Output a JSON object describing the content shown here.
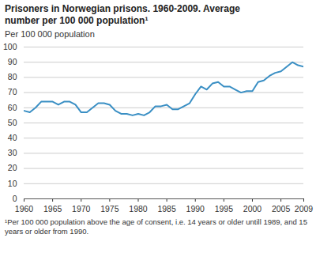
{
  "chart_data": {
    "type": "line",
    "title": "Prisoners in Norwegian prisons. 1960-2009. Average number per 100 000 population¹",
    "y_label": "Per 100 000 population",
    "note": "¹Per 100 000 population above the age of consent, i.e. 14 years or older untill 1989, and 15 years or older from 1990.",
    "x": [
      1960,
      1961,
      1962,
      1963,
      1964,
      1965,
      1966,
      1967,
      1968,
      1969,
      1970,
      1971,
      1972,
      1973,
      1974,
      1975,
      1976,
      1977,
      1978,
      1979,
      1980,
      1981,
      1982,
      1983,
      1984,
      1985,
      1986,
      1987,
      1988,
      1989,
      1990,
      1991,
      1992,
      1993,
      1994,
      1995,
      1996,
      1997,
      1998,
      1999,
      2000,
      2001,
      2002,
      2003,
      2004,
      2005,
      2006,
      2007,
      2008,
      2009
    ],
    "values": [
      58,
      57,
      60,
      64,
      64,
      64,
      62,
      64,
      64,
      62,
      57,
      57,
      60,
      63,
      63,
      62,
      58,
      56,
      56,
      55,
      56,
      55,
      57,
      61,
      61,
      62,
      59,
      59,
      61,
      63,
      69,
      74,
      72,
      76,
      77,
      74,
      74,
      72,
      70,
      71,
      71,
      77,
      78,
      81,
      83,
      84,
      87,
      90,
      88,
      87
    ],
    "color": "#3a8fc4",
    "xlim": [
      1960,
      2009
    ],
    "xticks": [
      1960,
      1965,
      1970,
      1975,
      1980,
      1985,
      1990,
      1995,
      2000,
      2005,
      2009
    ],
    "ylim": [
      0,
      100
    ],
    "yticks": [
      0,
      10,
      20,
      30,
      40,
      50,
      60,
      70,
      80,
      90,
      100
    ],
    "grid": true
  }
}
